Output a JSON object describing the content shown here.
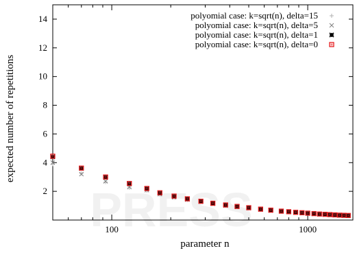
{
  "chart_data": {
    "type": "scatter",
    "xlabel": "parameter n",
    "ylabel": "expected number of repetitions",
    "xscale": "log",
    "xlim": [
      50,
      1700
    ],
    "ylim": [
      0,
      15
    ],
    "x_ticks": [
      100,
      1000
    ],
    "y_ticks": [
      2,
      4,
      6,
      8,
      10,
      12,
      14
    ],
    "grid": false,
    "legend_position": "top-right",
    "x": [
      50,
      70,
      93,
      123,
      151,
      176,
      208,
      243,
      285,
      328,
      381,
      436,
      500,
      575,
      648,
      733,
      800,
      868,
      935,
      1000,
      1076,
      1148,
      1224,
      1297,
      1376,
      1455,
      1532,
      1610
    ],
    "series": [
      {
        "name": "polyomial case: k=sqrt(n), delta=15",
        "color": "#b0b0b0",
        "marker": "plus",
        "values": [
          3.9,
          3.25,
          2.65,
          2.25,
          2.05,
          1.78,
          1.55,
          1.4,
          1.25,
          1.12,
          1.0,
          0.9,
          0.82,
          0.72,
          0.65,
          0.59,
          0.55,
          0.51,
          0.48,
          0.45,
          0.42,
          0.39,
          0.37,
          0.35,
          0.33,
          0.31,
          0.3,
          0.29
        ]
      },
      {
        "name": "polyomial case: k=sqrt(n), delta=5",
        "color": "#808080",
        "marker": "cross",
        "values": [
          4.0,
          3.2,
          2.7,
          2.3,
          2.08,
          1.8,
          1.58,
          1.42,
          1.27,
          1.13,
          1.01,
          0.91,
          0.83,
          0.73,
          0.66,
          0.6,
          0.56,
          0.52,
          0.49,
          0.46,
          0.43,
          0.4,
          0.38,
          0.36,
          0.34,
          0.32,
          0.31,
          0.3
        ]
      },
      {
        "name": "polyomial case: k=sqrt(n), delta=1",
        "color": "#000000",
        "marker": "star",
        "values": [
          4.4,
          3.6,
          2.98,
          2.52,
          2.18,
          1.88,
          1.65,
          1.47,
          1.3,
          1.16,
          1.04,
          0.94,
          0.85,
          0.75,
          0.68,
          0.61,
          0.57,
          0.53,
          0.5,
          0.47,
          0.44,
          0.41,
          0.39,
          0.37,
          0.35,
          0.33,
          0.32,
          0.31
        ]
      },
      {
        "name": "polyomial case: k=sqrt(n), delta=0",
        "color": "#e41a1c",
        "marker": "square",
        "values": [
          4.45,
          3.62,
          3.0,
          2.55,
          2.2,
          1.9,
          1.67,
          1.48,
          1.31,
          1.17,
          1.05,
          0.95,
          0.86,
          0.76,
          0.69,
          0.62,
          0.58,
          0.54,
          0.51,
          0.48,
          0.45,
          0.42,
          0.4,
          0.38,
          0.36,
          0.34,
          0.33,
          0.32
        ]
      }
    ]
  }
}
